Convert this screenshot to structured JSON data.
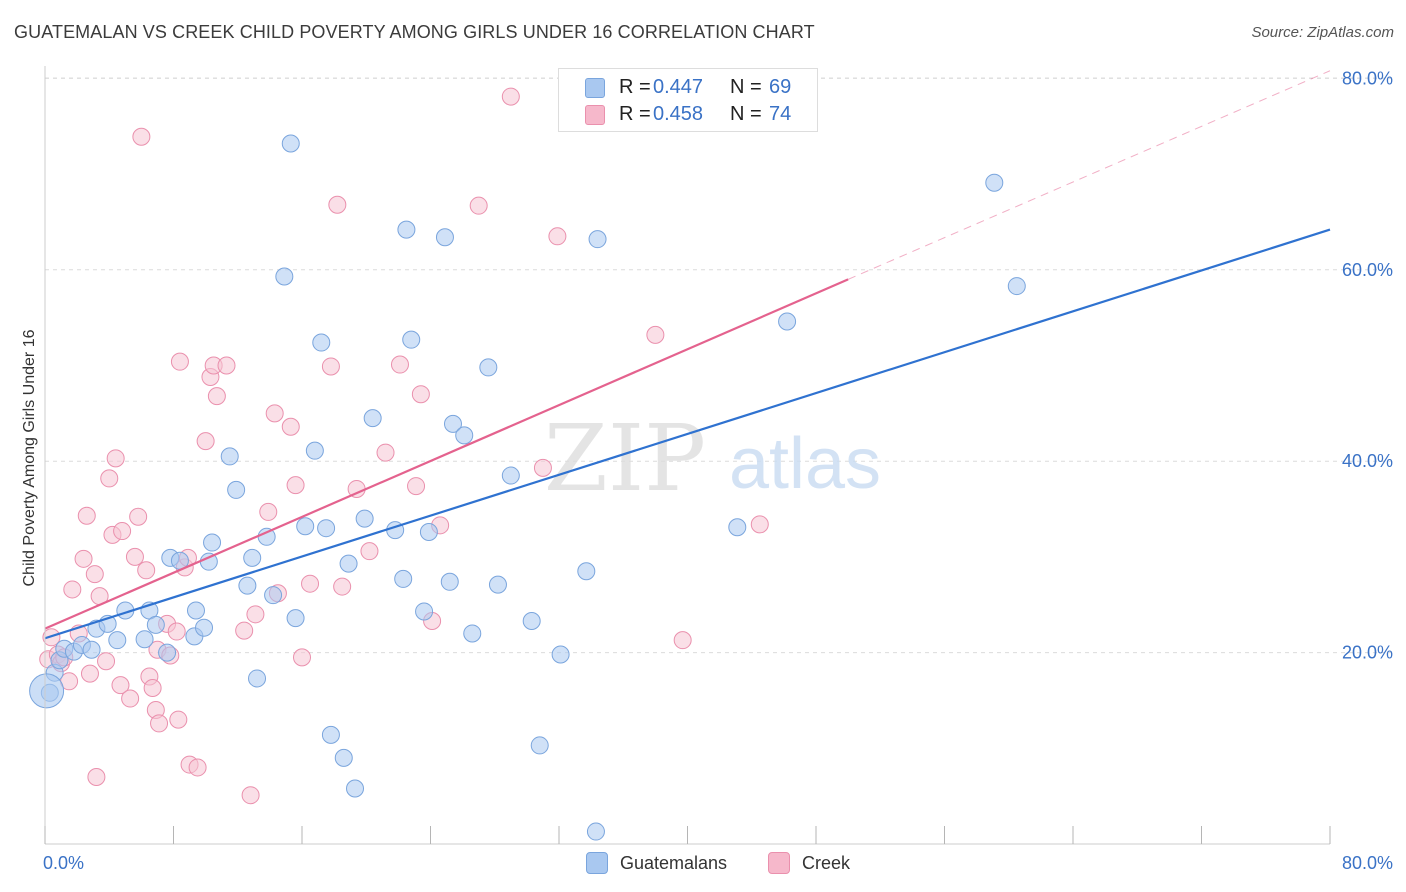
{
  "header": {
    "title": "GUATEMALAN VS CREEK CHILD POVERTY AMONG GIRLS UNDER 16 CORRELATION CHART",
    "source": "Source: ZipAtlas.com"
  },
  "watermark": {
    "zip": "ZIP",
    "atlas": "atlas"
  },
  "legend_top": [
    {
      "r_label": "R = ",
      "r_value": "0.447",
      "n_label": "N = ",
      "n_value": "69",
      "color": "#a9c8f0"
    },
    {
      "r_label": "R = ",
      "r_value": "0.458",
      "n_label": "N = ",
      "n_value": "74",
      "color": "#f6b8cb"
    }
  ],
  "legend_bottom": [
    {
      "label": "Guatemalans",
      "color": "#a9c8f0"
    },
    {
      "label": "Creek",
      "color": "#f6b8cb"
    }
  ],
  "colors": {
    "blue_line": "#2f72d0",
    "pink_line": "#e4628e",
    "tick_text": "#3a72c6",
    "blue_fill": "#a9c8f0",
    "blue_stroke": "#7aa5dd",
    "pink_fill": "#f6c4d4",
    "pink_stroke": "#ea90ad"
  },
  "chart_data": {
    "type": "scatter",
    "title": "GUATEMALAN VS CREEK CHILD POVERTY AMONG GIRLS UNDER 16 CORRELATION CHART",
    "xlabel": "",
    "ylabel": "Child Poverty Among Girls Under 16",
    "xlim": [
      0,
      80
    ],
    "ylim": [
      0,
      82
    ],
    "x_tick_labels": [
      "0.0%",
      "80.0%"
    ],
    "y_ticks": [
      20,
      40,
      60,
      80
    ],
    "y_tick_labels": [
      "20.0%",
      "40.0%",
      "60.0%",
      "80.0%"
    ],
    "grid": true,
    "legend": "top-center",
    "series": [
      {
        "name": "Guatemalans",
        "r": 0.447,
        "n": 69,
        "trend": {
          "x": [
            0,
            80
          ],
          "y": [
            21.5,
            64.2
          ]
        },
        "points": [
          [
            0.3,
            15.8
          ],
          [
            0.6,
            17.9
          ],
          [
            0.9,
            19.2
          ],
          [
            1.2,
            20.4
          ],
          [
            1.8,
            20.1
          ],
          [
            2.3,
            20.8
          ],
          [
            2.9,
            20.3
          ],
          [
            3.2,
            22.5
          ],
          [
            3.9,
            23.0
          ],
          [
            4.5,
            21.3
          ],
          [
            5.0,
            24.4
          ],
          [
            6.2,
            21.4
          ],
          [
            6.5,
            24.4
          ],
          [
            6.9,
            22.9
          ],
          [
            7.6,
            20.0
          ],
          [
            7.8,
            29.9
          ],
          [
            8.4,
            29.6
          ],
          [
            9.3,
            21.7
          ],
          [
            9.4,
            24.4
          ],
          [
            9.9,
            22.6
          ],
          [
            10.2,
            29.5
          ],
          [
            10.4,
            31.5
          ],
          [
            11.5,
            40.5
          ],
          [
            11.9,
            37.0
          ],
          [
            12.6,
            27.0
          ],
          [
            12.9,
            29.9
          ],
          [
            13.2,
            17.3
          ],
          [
            13.8,
            32.1
          ],
          [
            14.2,
            26.0
          ],
          [
            14.9,
            59.3
          ],
          [
            15.3,
            73.2
          ],
          [
            15.6,
            23.6
          ],
          [
            16.2,
            33.2
          ],
          [
            16.8,
            41.1
          ],
          [
            17.2,
            52.4
          ],
          [
            17.5,
            33.0
          ],
          [
            17.8,
            11.4
          ],
          [
            18.6,
            9.0
          ],
          [
            18.9,
            29.3
          ],
          [
            19.3,
            5.8
          ],
          [
            19.9,
            34.0
          ],
          [
            20.4,
            44.5
          ],
          [
            21.8,
            32.8
          ],
          [
            22.3,
            27.7
          ],
          [
            22.5,
            64.2
          ],
          [
            22.8,
            52.7
          ],
          [
            23.6,
            24.3
          ],
          [
            23.9,
            32.6
          ],
          [
            24.9,
            63.4
          ],
          [
            25.2,
            27.4
          ],
          [
            25.4,
            43.9
          ],
          [
            26.1,
            42.7
          ],
          [
            26.6,
            22.0
          ],
          [
            27.6,
            49.8
          ],
          [
            28.2,
            27.1
          ],
          [
            29.0,
            38.5
          ],
          [
            30.3,
            23.3
          ],
          [
            30.8,
            10.3
          ],
          [
            32.1,
            19.8
          ],
          [
            33.7,
            28.5
          ],
          [
            34.3,
            1.3
          ],
          [
            34.4,
            63.2
          ],
          [
            43.1,
            33.1
          ],
          [
            46.2,
            54.6
          ],
          [
            59.1,
            69.1
          ],
          [
            60.5,
            58.3
          ]
        ]
      },
      {
        "name": "Creek",
        "r": 0.458,
        "n": 74,
        "trend": {
          "x": [
            0,
            50
          ],
          "y": [
            22.5,
            59.0
          ]
        },
        "trend_dashed": {
          "x": [
            50,
            80
          ],
          "y": [
            59.0,
            80.8
          ]
        },
        "points": [
          [
            0.2,
            19.3
          ],
          [
            0.4,
            21.6
          ],
          [
            0.8,
            19.8
          ],
          [
            1.0,
            18.9
          ],
          [
            1.2,
            19.5
          ],
          [
            1.5,
            17.0
          ],
          [
            1.7,
            26.6
          ],
          [
            2.1,
            22.0
          ],
          [
            2.4,
            29.8
          ],
          [
            2.6,
            34.3
          ],
          [
            2.8,
            17.8
          ],
          [
            3.1,
            28.2
          ],
          [
            3.2,
            7.0
          ],
          [
            3.4,
            25.9
          ],
          [
            3.8,
            19.1
          ],
          [
            4.0,
            38.2
          ],
          [
            4.2,
            32.3
          ],
          [
            4.4,
            40.3
          ],
          [
            4.7,
            16.6
          ],
          [
            4.8,
            32.7
          ],
          [
            5.3,
            15.2
          ],
          [
            5.6,
            30.0
          ],
          [
            5.8,
            34.2
          ],
          [
            6.0,
            73.9
          ],
          [
            6.3,
            28.6
          ],
          [
            6.5,
            17.5
          ],
          [
            6.7,
            16.3
          ],
          [
            6.9,
            14.0
          ],
          [
            7.0,
            20.3
          ],
          [
            7.1,
            12.6
          ],
          [
            7.6,
            23.0
          ],
          [
            7.8,
            19.7
          ],
          [
            8.2,
            22.2
          ],
          [
            8.3,
            13.0
          ],
          [
            8.4,
            50.4
          ],
          [
            8.7,
            28.9
          ],
          [
            8.9,
            29.9
          ],
          [
            9.0,
            8.3
          ],
          [
            9.5,
            8.0
          ],
          [
            10.0,
            42.1
          ],
          [
            10.3,
            48.8
          ],
          [
            10.5,
            50.0
          ],
          [
            10.7,
            46.8
          ],
          [
            11.3,
            50.0
          ],
          [
            12.4,
            22.3
          ],
          [
            12.8,
            5.1
          ],
          [
            13.1,
            24.0
          ],
          [
            13.9,
            34.7
          ],
          [
            14.3,
            45.0
          ],
          [
            14.5,
            26.2
          ],
          [
            15.3,
            43.6
          ],
          [
            15.6,
            37.5
          ],
          [
            16.0,
            19.5
          ],
          [
            16.5,
            27.2
          ],
          [
            17.8,
            49.9
          ],
          [
            18.2,
            66.8
          ],
          [
            18.5,
            26.9
          ],
          [
            19.4,
            37.1
          ],
          [
            20.2,
            30.6
          ],
          [
            21.2,
            40.9
          ],
          [
            22.1,
            50.1
          ],
          [
            23.1,
            37.4
          ],
          [
            23.4,
            47.0
          ],
          [
            24.1,
            23.3
          ],
          [
            24.6,
            33.3
          ],
          [
            27.0,
            66.7
          ],
          [
            29.0,
            78.1
          ],
          [
            31.0,
            39.3
          ],
          [
            31.9,
            63.5
          ],
          [
            38.0,
            53.2
          ],
          [
            39.7,
            21.3
          ],
          [
            44.5,
            33.4
          ]
        ]
      }
    ]
  }
}
